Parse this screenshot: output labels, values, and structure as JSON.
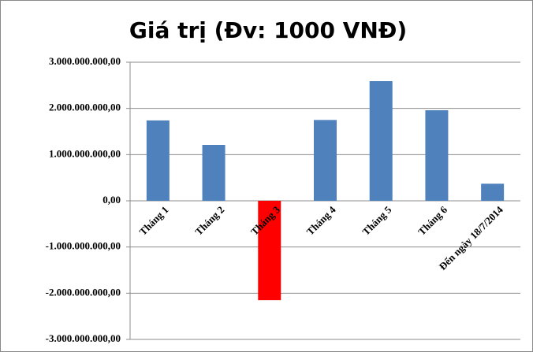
{
  "chart_data": {
    "type": "bar",
    "title": "Giá trị (Đv: 1000 VNĐ)",
    "categories": [
      "Tháng 1",
      "Tháng 2",
      "Tháng 3",
      "Tháng 4",
      "Tháng 5",
      "Tháng 6",
      "Đến ngày 18/7/2014"
    ],
    "values": [
      1740000000,
      1210000000,
      -2150000000,
      1750000000,
      2590000000,
      1960000000,
      370000000
    ],
    "colors": [
      "#4f81bd",
      "#4f81bd",
      "#ff0000",
      "#4f81bd",
      "#4f81bd",
      "#4f81bd",
      "#4f81bd"
    ],
    "ylim": [
      -3000000000,
      3000000000
    ],
    "yticks": [
      {
        "value": -3000000000,
        "label": "-3.000.000.000,00"
      },
      {
        "value": -2000000000,
        "label": "-2.000.000.000,00"
      },
      {
        "value": -1000000000,
        "label": "-1.000.000.000,00"
      },
      {
        "value": 0,
        "label": "0,00"
      },
      {
        "value": 1000000000,
        "label": "1.000.000.000,00"
      },
      {
        "value": 2000000000,
        "label": "2.000.000.000,00"
      },
      {
        "value": 3000000000,
        "label": "3.000.000.000,00"
      }
    ],
    "grid": true
  }
}
